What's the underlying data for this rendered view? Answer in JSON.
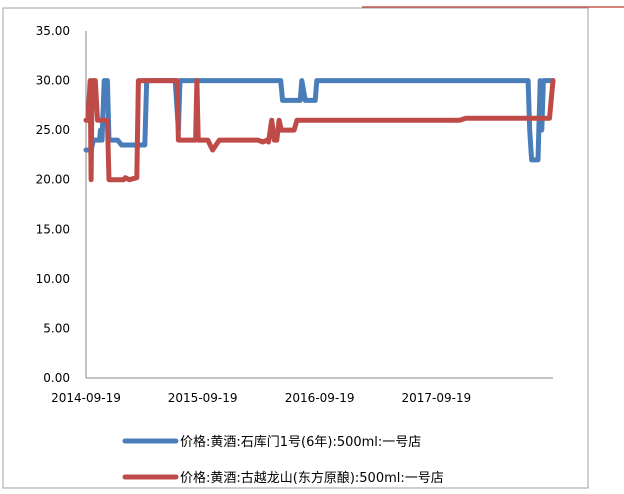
{
  "chart_data": {
    "type": "line",
    "title": "",
    "xlabel": "",
    "ylabel": "",
    "ylim": [
      0,
      35
    ],
    "yticks": [
      "0.00",
      "5.00",
      "10.00",
      "15.00",
      "20.00",
      "25.00",
      "30.00",
      "35.00"
    ],
    "xlim": [
      "2014-09-19",
      "2018-09-19"
    ],
    "xticks": [
      "2014-09-19",
      "2015-09-19",
      "2016-09-19",
      "2017-09-19"
    ],
    "grid": false,
    "legend_position": "bottom",
    "series": [
      {
        "name": "价格:黄酒:石库门1号(6年):500ml:一号店",
        "color": "#4a7ebb",
        "points": [
          [
            "2014-09-19",
            23
          ],
          [
            "2014-10-05",
            23
          ],
          [
            "2014-10-12",
            24
          ],
          [
            "2014-11-01",
            24
          ],
          [
            "2014-11-03",
            25
          ],
          [
            "2014-11-08",
            24
          ],
          [
            "2014-11-15",
            30
          ],
          [
            "2014-11-25",
            30
          ],
          [
            "2014-11-30",
            24
          ],
          [
            "2014-12-20",
            24
          ],
          [
            "2014-12-27",
            24
          ],
          [
            "2015-01-08",
            23.5
          ],
          [
            "2015-03-22",
            23.5
          ],
          [
            "2015-03-28",
            30
          ],
          [
            "2015-06-25",
            30
          ],
          [
            "2015-07-05",
            25
          ],
          [
            "2015-07-10",
            30
          ],
          [
            "2016-05-20",
            30
          ],
          [
            "2016-05-26",
            28
          ],
          [
            "2016-07-20",
            28
          ],
          [
            "2016-07-25",
            30
          ],
          [
            "2016-08-05",
            28
          ],
          [
            "2016-09-05",
            28
          ],
          [
            "2016-09-10",
            30
          ],
          [
            "2018-07-03",
            30
          ],
          [
            "2018-07-08",
            25
          ],
          [
            "2018-07-14",
            22
          ],
          [
            "2018-08-03",
            22
          ],
          [
            "2018-08-10",
            30
          ],
          [
            "2018-08-15",
            25
          ],
          [
            "2018-08-20",
            30
          ],
          [
            "2018-09-19",
            30
          ]
        ]
      },
      {
        "name": "价格:黄酒:古越龙山(东方原酿):500ml:一号店",
        "color": "#be4b48",
        "points": [
          [
            "2014-09-19",
            26
          ],
          [
            "2014-09-25",
            26
          ],
          [
            "2014-10-02",
            30
          ],
          [
            "2014-10-05",
            20
          ],
          [
            "2014-10-08",
            30
          ],
          [
            "2014-10-12",
            30
          ],
          [
            "2014-10-18",
            30
          ],
          [
            "2014-10-25",
            26
          ],
          [
            "2014-11-25",
            26
          ],
          [
            "2014-11-30",
            20
          ],
          [
            "2015-01-15",
            20
          ],
          [
            "2015-01-20",
            20.2
          ],
          [
            "2015-02-01",
            20
          ],
          [
            "2015-02-25",
            20.2
          ],
          [
            "2015-03-02",
            30
          ],
          [
            "2015-07-01",
            30
          ],
          [
            "2015-07-05",
            24
          ],
          [
            "2015-08-28",
            24
          ],
          [
            "2015-09-01",
            30
          ],
          [
            "2015-09-05",
            24
          ],
          [
            "2015-10-05",
            24
          ],
          [
            "2015-10-20",
            23
          ],
          [
            "2015-11-10",
            24
          ],
          [
            "2016-03-10",
            24
          ],
          [
            "2016-03-25",
            23.8
          ],
          [
            "2016-04-08",
            24
          ],
          [
            "2016-04-12",
            23.8
          ],
          [
            "2016-04-22",
            26
          ],
          [
            "2016-04-30",
            24
          ],
          [
            "2016-05-08",
            24
          ],
          [
            "2016-05-15",
            26
          ],
          [
            "2016-05-22",
            25
          ],
          [
            "2016-07-01",
            25
          ],
          [
            "2016-07-10",
            26
          ],
          [
            "2017-04-01",
            26
          ],
          [
            "2017-12-01",
            26
          ],
          [
            "2017-12-20",
            26.2
          ],
          [
            "2018-09-08",
            26.2
          ],
          [
            "2018-09-19",
            30
          ]
        ]
      }
    ]
  }
}
